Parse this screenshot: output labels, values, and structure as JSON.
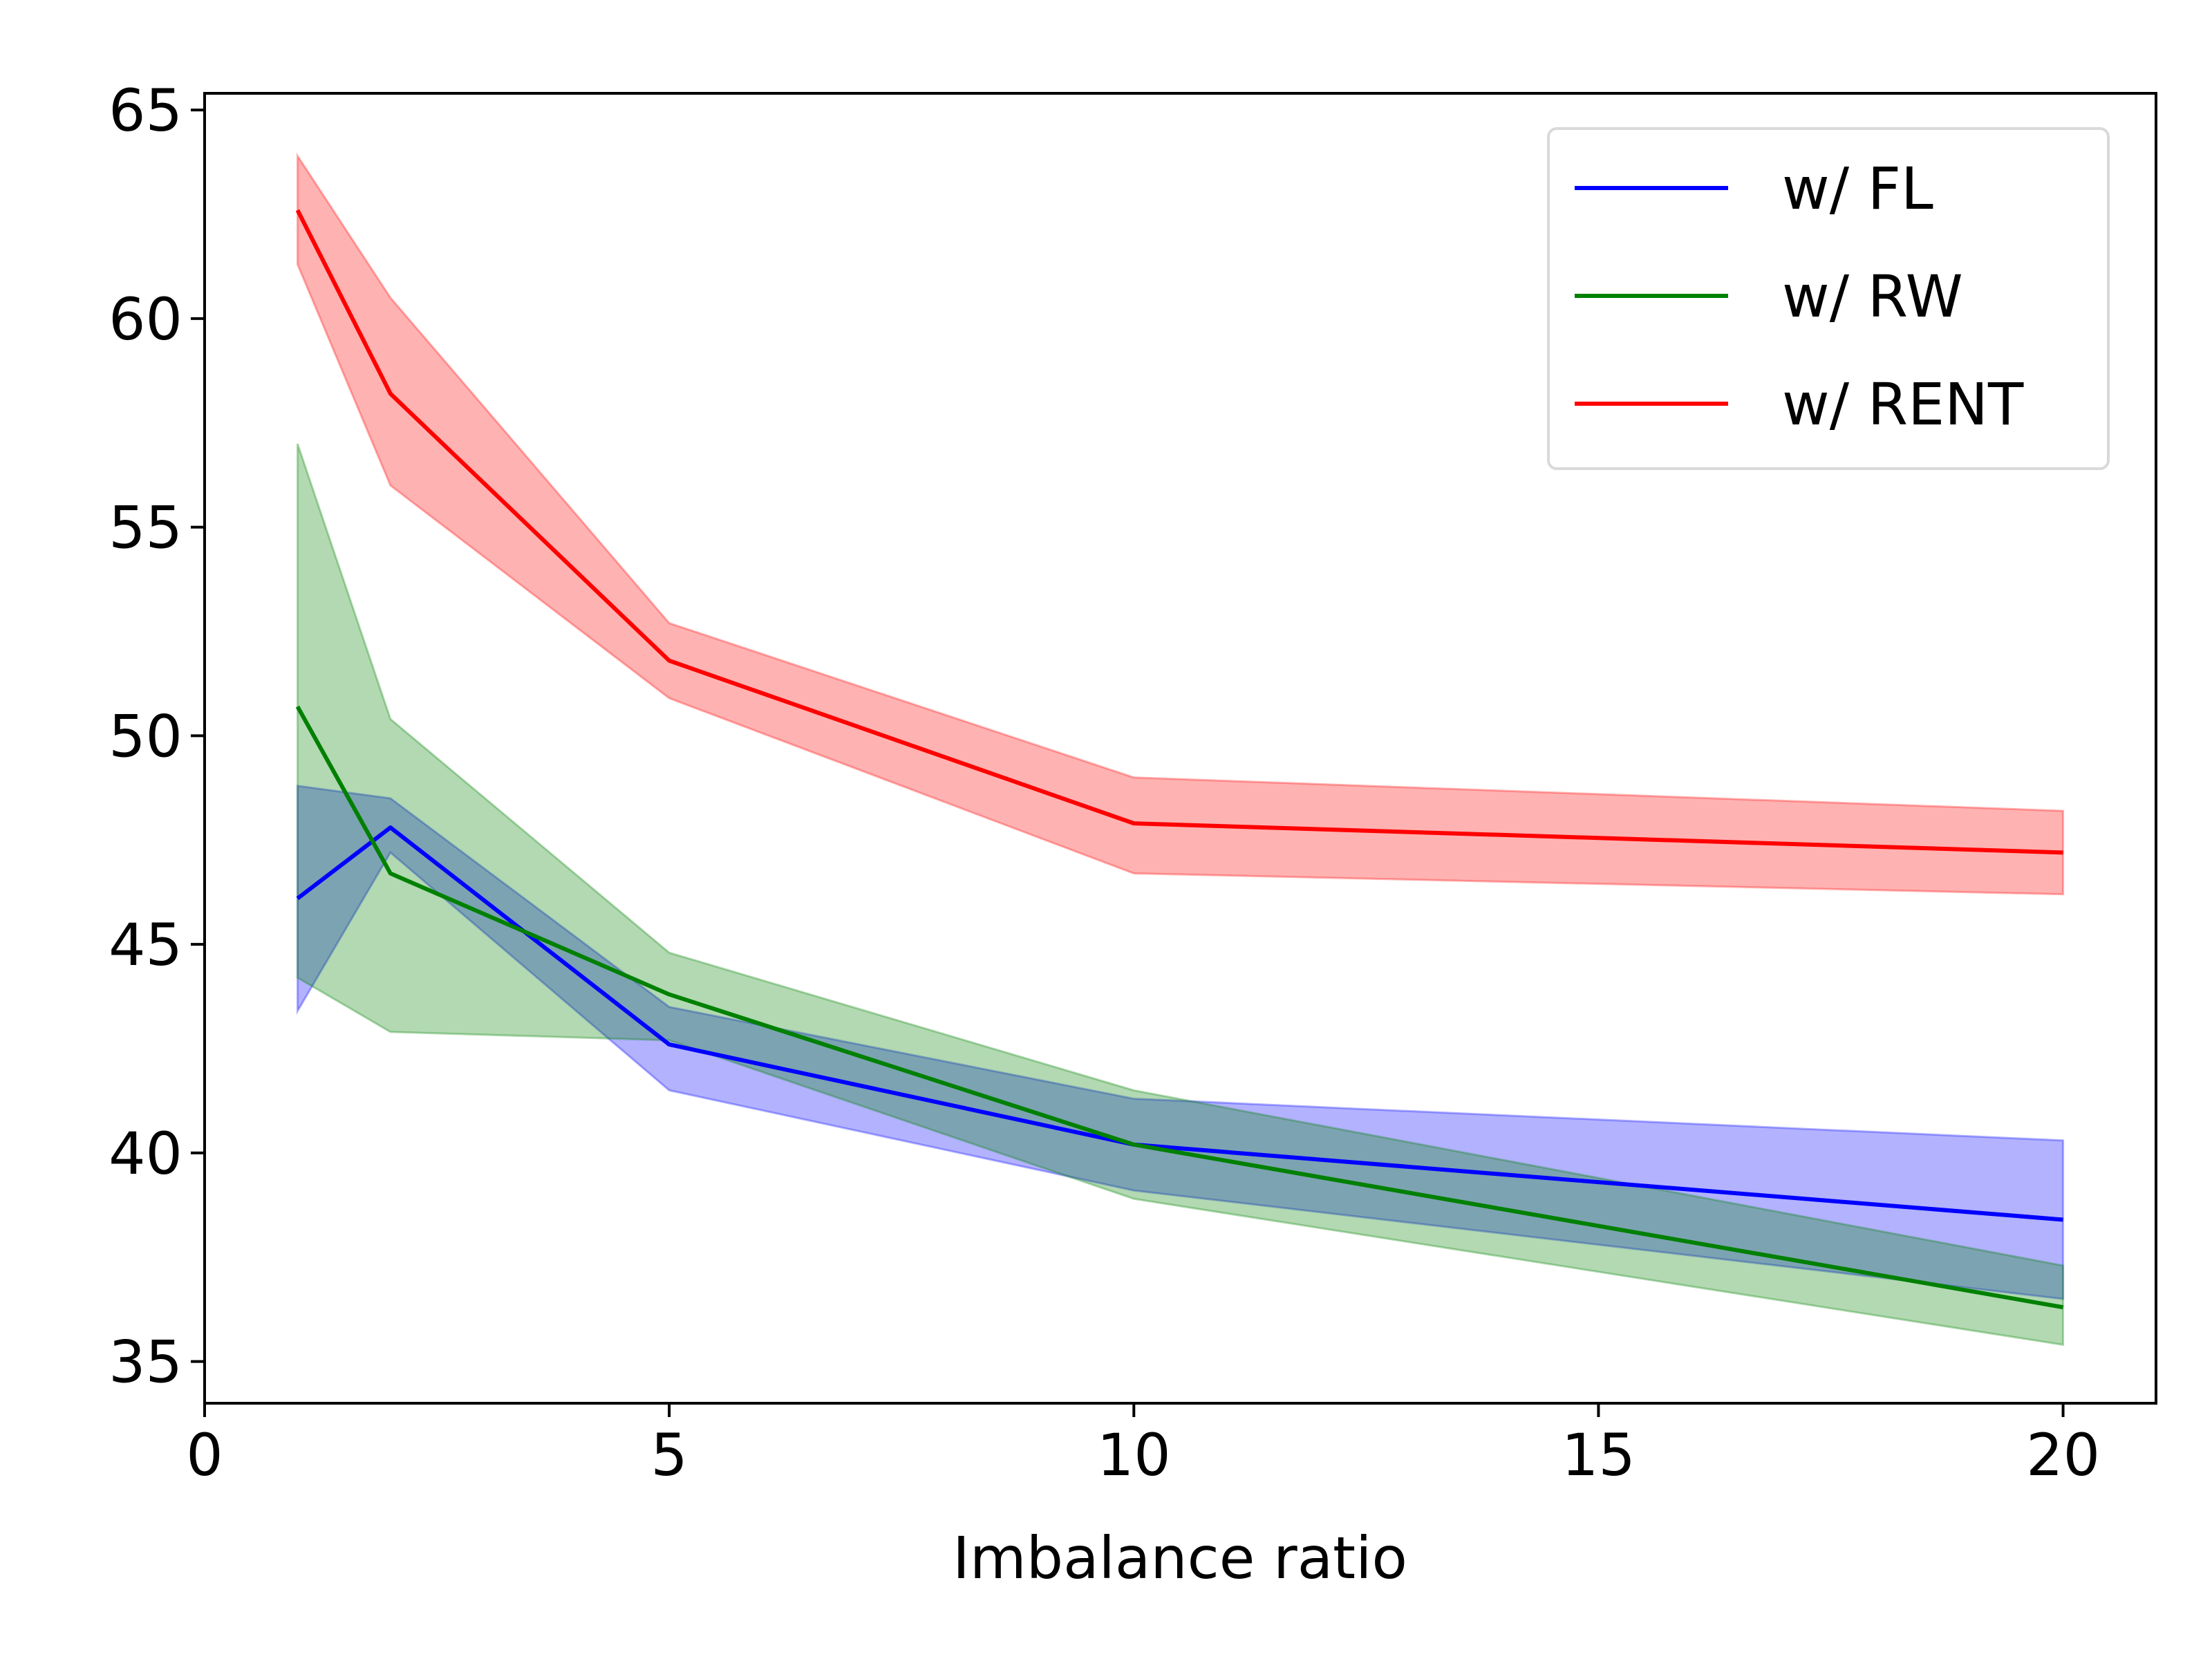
{
  "chart_data": {
    "type": "line",
    "title": "",
    "xlabel": "Imbalance ratio",
    "ylabel": "",
    "xlim": [
      0,
      21
    ],
    "ylim": [
      34,
      65.4
    ],
    "xticks": [
      0,
      5,
      10,
      15,
      20
    ],
    "yticks": [
      35,
      40,
      45,
      50,
      55,
      60,
      65
    ],
    "xtick_labels": [
      "0",
      "5",
      "10",
      "15",
      "20"
    ],
    "ytick_labels": [
      "35",
      "40",
      "45",
      "50",
      "55",
      "60",
      "65"
    ],
    "grid": false,
    "legend_position": "top-right",
    "x": [
      1,
      2,
      5,
      10,
      20
    ],
    "series": [
      {
        "name": "w/ FL",
        "color": "#0000ff",
        "values": [
          46.1,
          47.8,
          42.6,
          40.2,
          38.4
        ],
        "lower": [
          43.4,
          47.2,
          41.5,
          39.1,
          36.5
        ],
        "upper": [
          48.8,
          48.5,
          43.5,
          41.3,
          40.3
        ]
      },
      {
        "name": "w/ RW",
        "color": "#008000",
        "values": [
          50.7,
          46.7,
          43.8,
          40.2,
          36.3
        ],
        "lower": [
          44.2,
          42.9,
          42.7,
          38.9,
          35.4
        ],
        "upper": [
          57.0,
          50.4,
          44.8,
          41.5,
          37.3
        ]
      },
      {
        "name": "w/ RENT",
        "color": "#ff0000",
        "values": [
          62.6,
          58.2,
          51.8,
          47.9,
          47.2
        ],
        "lower": [
          61.3,
          56.0,
          50.9,
          46.7,
          46.2
        ],
        "upper": [
          63.9,
          60.5,
          52.7,
          49.0,
          48.2
        ]
      }
    ]
  }
}
